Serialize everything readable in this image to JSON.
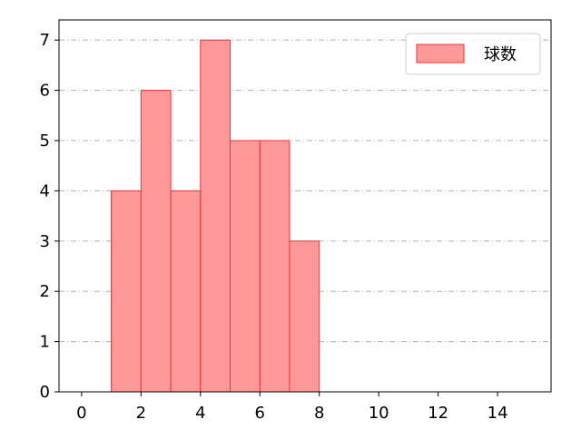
{
  "chart_data": {
    "type": "histogram",
    "bins": [
      1,
      2,
      3,
      4,
      5,
      6,
      7,
      8
    ],
    "series": [
      {
        "name": "球数",
        "color": "#ff9999",
        "edgecolor": "#ee3333",
        "values": [
          4,
          6,
          4,
          7,
          5,
          5,
          3
        ]
      }
    ],
    "xlim": [
      -0.76,
      15.8
    ],
    "xticks": [
      0,
      2,
      4,
      6,
      8,
      10,
      12,
      14
    ],
    "ylim": [
      0,
      7.4
    ],
    "yticks": [
      0,
      1,
      2,
      3,
      4,
      5,
      6,
      7
    ],
    "grid": "y",
    "legend": "upper right"
  }
}
